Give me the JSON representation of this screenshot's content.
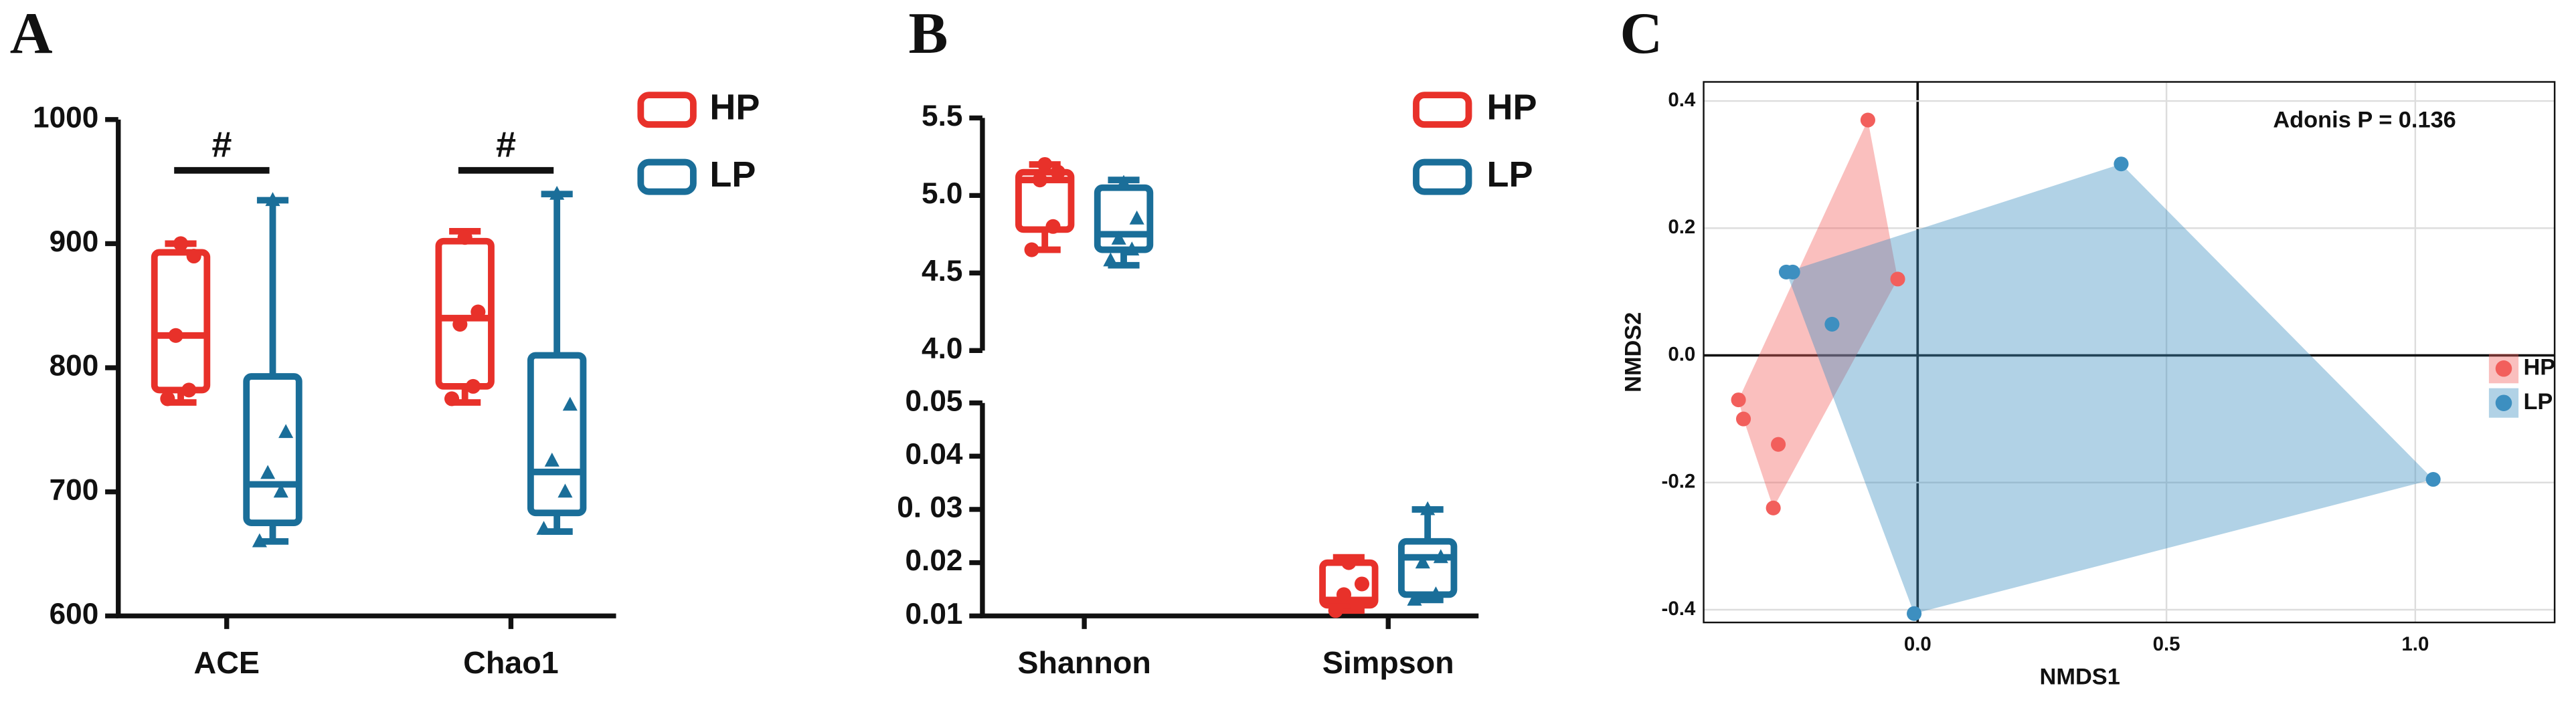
{
  "chart_data": [
    {
      "type": "box",
      "panel": "A",
      "categories": [
        "ACE",
        "Chao1"
      ],
      "ylim": [
        600,
        1000
      ],
      "yticks": [
        600,
        700,
        800,
        900,
        1000
      ],
      "significance": [
        "#",
        "#"
      ],
      "series": [
        {
          "name": "HP",
          "color": "#e8312a",
          "marker": "circle",
          "boxes": [
            {
              "min": 772,
              "q1": 782,
              "median": 826,
              "q3": 893,
              "max": 900,
              "points": [
                775,
                782,
                826,
                890,
                900
              ]
            },
            {
              "min": 772,
              "q1": 785,
              "median": 840,
              "q3": 902,
              "max": 910,
              "points": [
                775,
                785,
                835,
                845,
                905
              ]
            }
          ]
        },
        {
          "name": "LP",
          "color": "#1a6e99",
          "marker": "triangle",
          "boxes": [
            {
              "min": 660,
              "q1": 675,
              "median": 706,
              "q3": 793,
              "max": 935,
              "points": [
                660,
                700,
                715,
                748,
                935
              ]
            },
            {
              "min": 668,
              "q1": 683,
              "median": 716,
              "q3": 810,
              "max": 940,
              "points": [
                670,
                700,
                725,
                770,
                940
              ]
            }
          ]
        }
      ]
    },
    {
      "type": "box",
      "panel": "B",
      "categories": [
        "Shannon",
        "Simpson"
      ],
      "category_axis": [
        "upper",
        "lower"
      ],
      "axes": {
        "upper": {
          "ylim": [
            4.0,
            5.5
          ],
          "yticks": [
            {
              "value": 4.0,
              "label": "4.0"
            },
            4.5,
            {
              "value": 5.0,
              "label": "5.0"
            },
            5.5
          ]
        },
        "lower": {
          "ylim": [
            0.01,
            0.05
          ],
          "yticks": [
            0.01,
            0.02,
            {
              "value": 0.03,
              "label": "0. 03"
            },
            0.04,
            0.05
          ]
        }
      },
      "series": [
        {
          "name": "HP",
          "color": "#e8312a",
          "marker": "circle",
          "boxes": [
            {
              "min": 4.65,
              "q1": 4.78,
              "median": 5.1,
              "q3": 5.15,
              "max": 5.2,
              "points": [
                4.65,
                4.8,
                5.1,
                5.15,
                5.2
              ]
            },
            {
              "min": 0.011,
              "q1": 0.012,
              "median": 0.013,
              "q3": 0.02,
              "max": 0.021,
              "points": [
                0.011,
                0.012,
                0.014,
                0.016,
                0.02
              ]
            }
          ]
        },
        {
          "name": "LP",
          "color": "#1a6e99",
          "marker": "triangle",
          "boxes": [
            {
              "min": 4.55,
              "q1": 4.65,
              "median": 4.75,
              "q3": 5.05,
              "max": 5.1,
              "points": [
                4.58,
                4.65,
                4.72,
                4.85,
                5.08
              ]
            },
            {
              "min": 0.013,
              "q1": 0.014,
              "median": 0.021,
              "q3": 0.024,
              "max": 0.03,
              "points": [
                0.013,
                0.014,
                0.02,
                0.021,
                0.03
              ]
            }
          ]
        }
      ]
    },
    {
      "type": "scatter",
      "panel": "C",
      "xlabel": "NMDS1",
      "ylabel": "NMDS2",
      "annotation": "Adonis P = 0.136",
      "xlim": [
        -0.43,
        1.28
      ],
      "ylim": [
        -0.42,
        0.43
      ],
      "grid": true,
      "hull": true,
      "xticks": [
        {
          "value": 0.0,
          "label": "0.0"
        },
        0.5,
        {
          "value": 1.0,
          "label": "1.0"
        }
      ],
      "yticks": [
        -0.4,
        -0.2,
        {
          "value": 0.0,
          "label": "0.0"
        },
        0.2,
        0.4
      ],
      "series": [
        {
          "name": "HP",
          "color": "#f25f5c",
          "x": [
            -0.1,
            -0.04,
            -0.36,
            -0.35,
            -0.28,
            -0.29
          ],
          "y": [
            0.37,
            0.12,
            -0.07,
            -0.1,
            -0.14,
            -0.24
          ]
        },
        {
          "name": "LP",
          "color": "#3d8fc0",
          "x": [
            -0.264,
            -0.251,
            -0.172,
            0.409,
            1.036,
            -0.007
          ],
          "y": [
            0.131,
            0.131,
            0.049,
            0.301,
            -0.195,
            -0.406
          ]
        }
      ]
    }
  ]
}
